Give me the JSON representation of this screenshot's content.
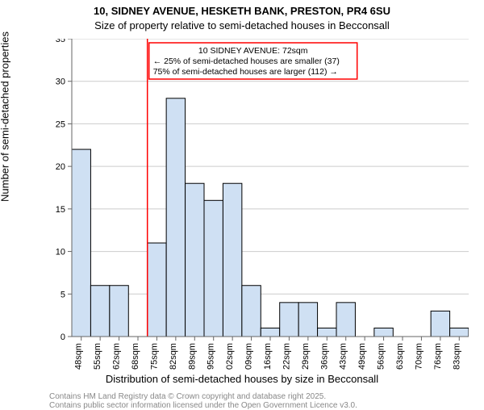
{
  "title": "10, SIDNEY AVENUE, HESKETH BANK, PRESTON, PR4 6SU",
  "subtitle": "Size of property relative to semi-detached houses in Becconsall",
  "ylabel": "Number of semi-detached properties",
  "xlabel": "Distribution of semi-detached houses by size in Becconsall",
  "footnote1": "Contains HM Land Registry data © Crown copyright and database right 2025.",
  "footnote2": "Contains public sector information licensed under the Open Government Licence v3.0.",
  "chart": {
    "type": "bar",
    "background_color": "#ffffff",
    "grid_color": "#cccccc",
    "axis_color": "#666666",
    "bar_fill": "#cfe0f3",
    "bar_stroke": "#000000",
    "bar_width_ratio": 1.0,
    "ylim": [
      0,
      35
    ],
    "ytick_step": 5,
    "categories": [
      "48sqm",
      "55sqm",
      "62sqm",
      "68sqm",
      "75sqm",
      "82sqm",
      "89sqm",
      "95sqm",
      "102sqm",
      "109sqm",
      "116sqm",
      "122sqm",
      "129sqm",
      "136sqm",
      "143sqm",
      "149sqm",
      "156sqm",
      "163sqm",
      "170sqm",
      "176sqm",
      "183sqm"
    ],
    "values": [
      22,
      6,
      6,
      0,
      11,
      28,
      18,
      16,
      18,
      6,
      1,
      4,
      4,
      1,
      4,
      0,
      1,
      0,
      0,
      3,
      1
    ],
    "label_fontsize": 11,
    "axis_label_fontsize": 13,
    "title_fontsize": 13
  },
  "marker": {
    "x_category_index": 4,
    "x_align": "left",
    "color": "#ff0000",
    "box_border": "#ff0000",
    "box_bg": "#ffffff",
    "lines": [
      "10 SIDNEY AVENUE: 72sqm",
      "← 25% of semi-detached houses are smaller (37)",
      "75% of semi-detached houses are larger (112) →"
    ]
  }
}
